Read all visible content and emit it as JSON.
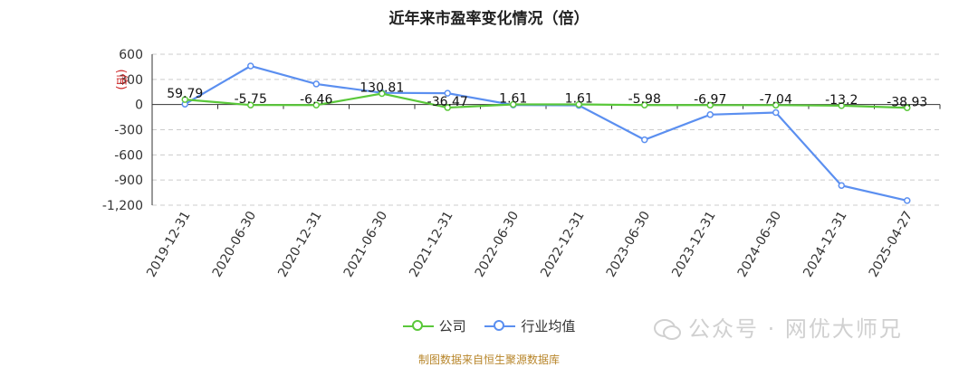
{
  "chart_data": {
    "type": "line",
    "title": "近年来市盈率变化情况（倍）",
    "ylabel": "(倍)",
    "categories": [
      "2019-12-31",
      "2020-06-30",
      "2020-12-31",
      "2021-06-30",
      "2021-12-31",
      "2022-06-30",
      "2022-12-31",
      "2023-06-30",
      "2023-12-31",
      "2024-06-30",
      "2024-12-31",
      "2025-04-27"
    ],
    "ylim": [
      -1200,
      600
    ],
    "yticks": [
      600,
      300,
      0,
      -300,
      -600,
      -900,
      -1200
    ],
    "ytick_labels": [
      "600",
      "300",
      "0",
      "-300",
      "-600",
      "-900",
      "-1,200"
    ],
    "grid": true,
    "legend_position": "bottom",
    "series": [
      {
        "name": "公司",
        "color": "#5ac83a",
        "values": [
          59.79,
          -5.75,
          -6.46,
          130.81,
          -36.47,
          1.61,
          1.61,
          -5.98,
          -6.97,
          -7.04,
          -13.2,
          -38.93
        ],
        "labels": [
          "59.79",
          "-5.75",
          "-6.46",
          "130.81",
          "-36.47",
          "1.61",
          "1.61",
          "-5.98",
          "-6.97",
          "-7.04",
          "-13.2",
          "-38.93"
        ]
      },
      {
        "name": "行业均值",
        "color": "#5b8ff0",
        "values": [
          5,
          460,
          245,
          140,
          135,
          -5,
          -10,
          -420,
          -120,
          -95,
          -965,
          -1145
        ]
      }
    ]
  },
  "source_note": "制图数据来自恒生聚源数据库",
  "watermark": "公众号 · 网优大师兄"
}
